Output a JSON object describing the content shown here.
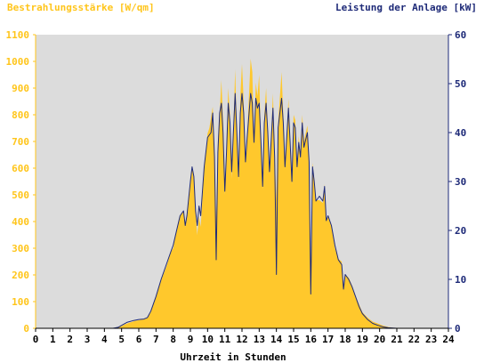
{
  "chart_data": {
    "type": "area",
    "left_axis_label": "Bestrahlungsstärke [W/qm]",
    "right_axis_label": "Leistung der Anlage [kW]",
    "xlabel": "Uhrzeit in Stunden",
    "x_ticks": [
      "0",
      "1",
      "2",
      "3",
      "4",
      "5",
      "6",
      "7",
      "8",
      "9",
      "10",
      "11",
      "12",
      "13",
      "14",
      "15",
      "16",
      "17",
      "18",
      "19",
      "20",
      "21",
      "22",
      "23",
      "24"
    ],
    "left_ticks": [
      "0",
      "100",
      "200",
      "300",
      "400",
      "500",
      "600",
      "700",
      "800",
      "900",
      "1000",
      "1100"
    ],
    "right_ticks": [
      "0",
      "10",
      "20",
      "30",
      "40",
      "50",
      "60"
    ],
    "xlim": [
      0,
      24
    ],
    "left_ylim": [
      0,
      1100
    ],
    "right_ylim": [
      0,
      60
    ],
    "grid": false,
    "colors": {
      "left_axis": "#FFC51A",
      "right_axis": "#1E2A78",
      "plot_background": "#DCDCDC",
      "irradiance_fill": "#FFC82C",
      "power_line": "#1E2A78"
    },
    "series": [
      {
        "axis": "left",
        "style": "filled-area",
        "points": [
          [
            0,
            0
          ],
          [
            4.5,
            0
          ],
          [
            4.8,
            3
          ],
          [
            5.0,
            8
          ],
          [
            5.2,
            15
          ],
          [
            5.5,
            22
          ],
          [
            5.8,
            28
          ],
          [
            6.0,
            30
          ],
          [
            6.3,
            35
          ],
          [
            6.5,
            40
          ],
          [
            6.7,
            60
          ],
          [
            7.0,
            120
          ],
          [
            7.3,
            180
          ],
          [
            7.6,
            230
          ],
          [
            7.9,
            290
          ],
          [
            8.0,
            300
          ],
          [
            8.2,
            370
          ],
          [
            8.4,
            420
          ],
          [
            8.6,
            440
          ],
          [
            8.7,
            380
          ],
          [
            8.8,
            420
          ],
          [
            9.0,
            560
          ],
          [
            9.1,
            600
          ],
          [
            9.2,
            560
          ],
          [
            9.3,
            430
          ],
          [
            9.4,
            350
          ],
          [
            9.5,
            420
          ],
          [
            9.6,
            380
          ],
          [
            9.8,
            600
          ],
          [
            10.0,
            730
          ],
          [
            10.1,
            750
          ],
          [
            10.3,
            830
          ],
          [
            10.4,
            650
          ],
          [
            10.5,
            400
          ],
          [
            10.6,
            700
          ],
          [
            10.7,
            800
          ],
          [
            10.8,
            930
          ],
          [
            10.9,
            780
          ],
          [
            11.0,
            500
          ],
          [
            11.1,
            650
          ],
          [
            11.2,
            900
          ],
          [
            11.3,
            800
          ],
          [
            11.4,
            560
          ],
          [
            11.5,
            740
          ],
          [
            11.6,
            970
          ],
          [
            11.7,
            750
          ],
          [
            11.8,
            550
          ],
          [
            11.9,
            870
          ],
          [
            12.0,
            990
          ],
          [
            12.1,
            850
          ],
          [
            12.2,
            620
          ],
          [
            12.3,
            720
          ],
          [
            12.5,
            1010
          ],
          [
            12.6,
            960
          ],
          [
            12.7,
            700
          ],
          [
            12.8,
            920
          ],
          [
            12.9,
            870
          ],
          [
            13.0,
            950
          ],
          [
            13.1,
            700
          ],
          [
            13.2,
            520
          ],
          [
            13.3,
            800
          ],
          [
            13.4,
            900
          ],
          [
            13.5,
            750
          ],
          [
            13.6,
            580
          ],
          [
            13.8,
            880
          ],
          [
            13.9,
            650
          ],
          [
            14.0,
            480
          ],
          [
            14.1,
            770
          ],
          [
            14.3,
            960
          ],
          [
            14.4,
            800
          ],
          [
            14.5,
            600
          ],
          [
            14.6,
            720
          ],
          [
            14.7,
            860
          ],
          [
            14.8,
            700
          ],
          [
            14.9,
            540
          ],
          [
            15.0,
            800
          ],
          [
            15.1,
            780
          ],
          [
            15.2,
            600
          ],
          [
            15.3,
            720
          ],
          [
            15.4,
            650
          ],
          [
            15.5,
            800
          ],
          [
            15.6,
            700
          ],
          [
            15.8,
            760
          ],
          [
            15.9,
            620
          ],
          [
            16.0,
            200
          ],
          [
            16.1,
            620
          ],
          [
            16.2,
            560
          ],
          [
            16.3,
            480
          ],
          [
            16.5,
            480
          ],
          [
            16.7,
            470
          ],
          [
            16.8,
            540
          ],
          [
            16.9,
            400
          ],
          [
            17.0,
            420
          ],
          [
            17.2,
            380
          ],
          [
            17.4,
            300
          ],
          [
            17.6,
            260
          ],
          [
            17.8,
            250
          ],
          [
            17.9,
            150
          ],
          [
            18.0,
            200
          ],
          [
            18.2,
            190
          ],
          [
            18.4,
            160
          ],
          [
            18.6,
            120
          ],
          [
            18.8,
            90
          ],
          [
            19.0,
            60
          ],
          [
            19.3,
            40
          ],
          [
            19.6,
            25
          ],
          [
            19.9,
            18
          ],
          [
            20.2,
            10
          ],
          [
            20.5,
            5
          ],
          [
            21.0,
            0
          ],
          [
            24,
            0
          ]
        ]
      },
      {
        "axis": "right",
        "style": "line",
        "points": [
          [
            0,
            0
          ],
          [
            4.5,
            0
          ],
          [
            4.8,
            0.2
          ],
          [
            5.0,
            0.6
          ],
          [
            5.3,
            1.2
          ],
          [
            5.7,
            1.6
          ],
          [
            6.0,
            1.8
          ],
          [
            6.3,
            1.9
          ],
          [
            6.5,
            2.2
          ],
          [
            6.7,
            3.5
          ],
          [
            7.0,
            6.5
          ],
          [
            7.3,
            10
          ],
          [
            7.6,
            13
          ],
          [
            7.9,
            16
          ],
          [
            8.0,
            17
          ],
          [
            8.2,
            20
          ],
          [
            8.4,
            23
          ],
          [
            8.6,
            24
          ],
          [
            8.7,
            21
          ],
          [
            8.8,
            23
          ],
          [
            9.0,
            30
          ],
          [
            9.1,
            33
          ],
          [
            9.2,
            31
          ],
          [
            9.3,
            24
          ],
          [
            9.4,
            21
          ],
          [
            9.5,
            25
          ],
          [
            9.6,
            23
          ],
          [
            9.8,
            33
          ],
          [
            10.0,
            39
          ],
          [
            10.2,
            40
          ],
          [
            10.3,
            44
          ],
          [
            10.4,
            35
          ],
          [
            10.5,
            14
          ],
          [
            10.6,
            36
          ],
          [
            10.7,
            44
          ],
          [
            10.8,
            46
          ],
          [
            10.9,
            40
          ],
          [
            11.0,
            28
          ],
          [
            11.1,
            36
          ],
          [
            11.2,
            46
          ],
          [
            11.3,
            42
          ],
          [
            11.4,
            32
          ],
          [
            11.5,
            40
          ],
          [
            11.6,
            48
          ],
          [
            11.7,
            40
          ],
          [
            11.8,
            31
          ],
          [
            11.9,
            44
          ],
          [
            12.0,
            48
          ],
          [
            12.1,
            44
          ],
          [
            12.2,
            34
          ],
          [
            12.3,
            39
          ],
          [
            12.5,
            48
          ],
          [
            12.6,
            46
          ],
          [
            12.7,
            38
          ],
          [
            12.8,
            47
          ],
          [
            12.9,
            45
          ],
          [
            13.0,
            46
          ],
          [
            13.1,
            38
          ],
          [
            13.2,
            29
          ],
          [
            13.3,
            42
          ],
          [
            13.4,
            46
          ],
          [
            13.5,
            40
          ],
          [
            13.6,
            32
          ],
          [
            13.8,
            45
          ],
          [
            13.9,
            35
          ],
          [
            14.0,
            11
          ],
          [
            14.1,
            41
          ],
          [
            14.3,
            47
          ],
          [
            14.4,
            42
          ],
          [
            14.5,
            33
          ],
          [
            14.6,
            39
          ],
          [
            14.7,
            45
          ],
          [
            14.8,
            38
          ],
          [
            14.9,
            30
          ],
          [
            15.0,
            42
          ],
          [
            15.1,
            41
          ],
          [
            15.2,
            33
          ],
          [
            15.3,
            38
          ],
          [
            15.4,
            35
          ],
          [
            15.5,
            42
          ],
          [
            15.6,
            37
          ],
          [
            15.8,
            40
          ],
          [
            15.9,
            34
          ],
          [
            16.0,
            7
          ],
          [
            16.1,
            33
          ],
          [
            16.2,
            30
          ],
          [
            16.3,
            26
          ],
          [
            16.5,
            27
          ],
          [
            16.7,
            26
          ],
          [
            16.8,
            29
          ],
          [
            16.9,
            22
          ],
          [
            17.0,
            23
          ],
          [
            17.2,
            21
          ],
          [
            17.4,
            17
          ],
          [
            17.6,
            14
          ],
          [
            17.8,
            13
          ],
          [
            17.9,
            8
          ],
          [
            18.0,
            11
          ],
          [
            18.2,
            10
          ],
          [
            18.4,
            8.5
          ],
          [
            18.6,
            6.5
          ],
          [
            18.8,
            4.5
          ],
          [
            19.0,
            3
          ],
          [
            19.3,
            1.8
          ],
          [
            19.6,
            1
          ],
          [
            19.9,
            0.6
          ],
          [
            20.2,
            0.3
          ],
          [
            20.5,
            0.1
          ],
          [
            21.0,
            0
          ],
          [
            24,
            0
          ]
        ]
      }
    ]
  }
}
